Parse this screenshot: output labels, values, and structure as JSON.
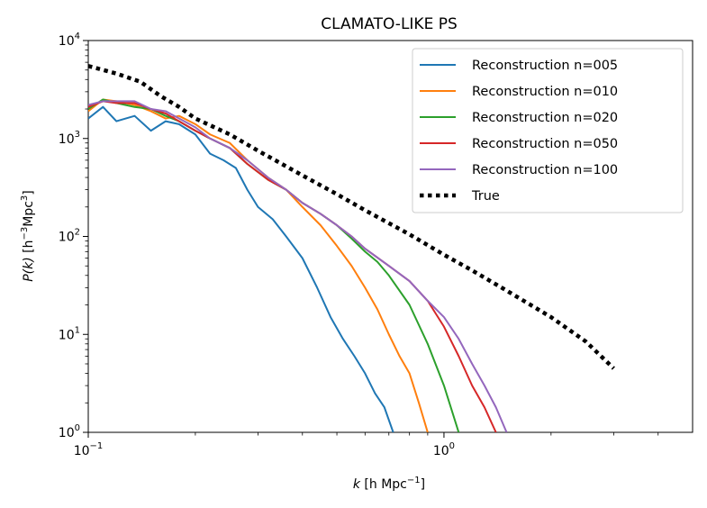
{
  "chart_data": {
    "type": "line",
    "title": "CLAMATO-LIKE PS",
    "xlabel_main": "k",
    "xlabel_unit_pre": " [h Mpc",
    "xlabel_unit_sup": "−1",
    "xlabel_unit_post": "]",
    "ylabel_main": "P(k)",
    "ylabel_unit_pre": " [h",
    "ylabel_unit_sup1": "−3",
    "ylabel_unit_mid": "Mpc",
    "ylabel_unit_sup2": "3",
    "ylabel_unit_post": "]",
    "xscale": "log",
    "yscale": "log",
    "xlim": [
      0.1,
      5.0
    ],
    "ylim": [
      1,
      10000
    ],
    "x_ticks": [
      {
        "value": 0.1,
        "base": "10",
        "exp": "−1"
      },
      {
        "value": 1.0,
        "base": "10",
        "exp": "0"
      }
    ],
    "y_ticks": [
      {
        "value": 1,
        "base": "10",
        "exp": "0"
      },
      {
        "value": 10,
        "base": "10",
        "exp": "1"
      },
      {
        "value": 100,
        "base": "10",
        "exp": "2"
      },
      {
        "value": 1000,
        "base": "10",
        "exp": "3"
      },
      {
        "value": 10000,
        "base": "10",
        "exp": "4"
      }
    ],
    "legend_position": "top-right",
    "series": [
      {
        "name": "Reconstruction n=005",
        "color": "#1f77b4",
        "style": "solid",
        "x": [
          0.1,
          0.11,
          0.12,
          0.135,
          0.15,
          0.165,
          0.18,
          0.2,
          0.22,
          0.24,
          0.26,
          0.28,
          0.3,
          0.33,
          0.36,
          0.4,
          0.44,
          0.48,
          0.52,
          0.56,
          0.6,
          0.64,
          0.68,
          0.72
        ],
        "y": [
          1600,
          2100,
          1500,
          1700,
          1200,
          1500,
          1400,
          1100,
          700,
          600,
          500,
          300,
          200,
          150,
          100,
          60,
          30,
          15,
          9,
          6,
          4,
          2.5,
          1.8,
          1.0
        ]
      },
      {
        "name": "Reconstruction n=010",
        "color": "#ff7f0e",
        "style": "solid",
        "x": [
          0.1,
          0.11,
          0.12,
          0.135,
          0.15,
          0.165,
          0.18,
          0.2,
          0.22,
          0.25,
          0.28,
          0.32,
          0.36,
          0.4,
          0.45,
          0.5,
          0.55,
          0.6,
          0.65,
          0.7,
          0.75,
          0.8,
          0.85,
          0.9
        ],
        "y": [
          1900,
          2500,
          2400,
          2200,
          1900,
          1600,
          1700,
          1400,
          1100,
          900,
          600,
          400,
          300,
          200,
          130,
          80,
          50,
          30,
          18,
          10,
          6,
          4,
          2,
          1.0
        ]
      },
      {
        "name": "Reconstruction n=020",
        "color": "#2ca02c",
        "style": "solid",
        "x": [
          0.1,
          0.11,
          0.12,
          0.135,
          0.15,
          0.165,
          0.18,
          0.2,
          0.22,
          0.25,
          0.28,
          0.32,
          0.36,
          0.4,
          0.45,
          0.5,
          0.55,
          0.6,
          0.65,
          0.7,
          0.8,
          0.9,
          1.0,
          1.1
        ],
        "y": [
          2000,
          2500,
          2300,
          2100,
          2000,
          1700,
          1500,
          1200,
          1000,
          800,
          550,
          380,
          300,
          220,
          170,
          130,
          95,
          70,
          55,
          40,
          20,
          8,
          3,
          1.0
        ]
      },
      {
        "name": "Reconstruction n=050",
        "color": "#d62728",
        "style": "solid",
        "x": [
          0.1,
          0.11,
          0.12,
          0.135,
          0.15,
          0.165,
          0.18,
          0.2,
          0.22,
          0.25,
          0.28,
          0.32,
          0.36,
          0.4,
          0.45,
          0.5,
          0.55,
          0.6,
          0.7,
          0.8,
          0.9,
          1.0,
          1.1,
          1.2,
          1.3,
          1.4
        ],
        "y": [
          2100,
          2400,
          2300,
          2300,
          2000,
          1800,
          1500,
          1200,
          1000,
          800,
          550,
          380,
          300,
          220,
          170,
          130,
          100,
          75,
          50,
          35,
          22,
          12,
          6,
          3,
          1.8,
          1.0
        ]
      },
      {
        "name": "Reconstruction n=100",
        "color": "#9467bd",
        "style": "solid",
        "x": [
          0.1,
          0.11,
          0.12,
          0.135,
          0.15,
          0.165,
          0.18,
          0.2,
          0.22,
          0.25,
          0.28,
          0.32,
          0.36,
          0.4,
          0.45,
          0.5,
          0.55,
          0.6,
          0.7,
          0.8,
          0.9,
          1.0,
          1.1,
          1.2,
          1.3,
          1.4,
          1.5
        ],
        "y": [
          2200,
          2400,
          2400,
          2400,
          2000,
          1900,
          1600,
          1300,
          1000,
          800,
          600,
          400,
          300,
          220,
          170,
          130,
          100,
          75,
          50,
          35,
          22,
          15,
          9,
          5,
          3,
          1.8,
          1.0
        ]
      },
      {
        "name": "True",
        "color": "#000000",
        "style": "dotted",
        "x": [
          0.1,
          0.12,
          0.14,
          0.16,
          0.18,
          0.2,
          0.25,
          0.3,
          0.4,
          0.5,
          0.6,
          0.8,
          1.0,
          1.2,
          1.5,
          2.0,
          2.5,
          3.0
        ],
        "y": [
          5500,
          4600,
          3800,
          2700,
          2100,
          1600,
          1100,
          750,
          420,
          270,
          185,
          105,
          65,
          45,
          28,
          15,
          8.5,
          4.5
        ]
      }
    ]
  }
}
